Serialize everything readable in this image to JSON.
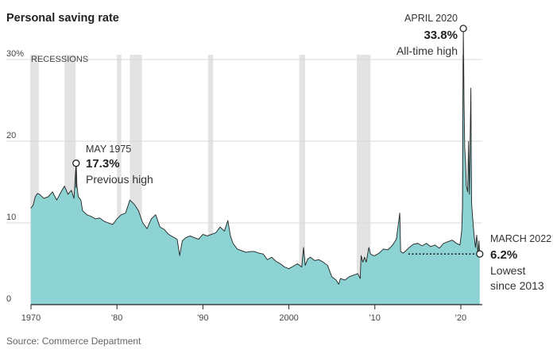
{
  "chart_data": {
    "type": "area",
    "title": "Personal saving rate",
    "source": "Source: Commerce Department",
    "recession_label": "RECESSIONS",
    "ylim": [
      0,
      30
    ],
    "xlim": [
      1970,
      2022.5
    ],
    "y_ticks": [
      {
        "value": 0,
        "label": "0"
      },
      {
        "value": 10,
        "label": "10"
      },
      {
        "value": 20,
        "label": "20"
      },
      {
        "value": 30,
        "label": "30%"
      }
    ],
    "x_ticks": [
      {
        "value": 1970,
        "label": "1970"
      },
      {
        "value": 1980,
        "label": "'80"
      },
      {
        "value": 1990,
        "label": "'90"
      },
      {
        "value": 2000,
        "label": "2000"
      },
      {
        "value": 2010,
        "label": "'10"
      },
      {
        "value": 2020,
        "label": "'20"
      }
    ],
    "recessions": [
      [
        1969.9,
        1970.9
      ],
      [
        1973.9,
        1975.2
      ],
      [
        1980.0,
        1980.5
      ],
      [
        1981.5,
        1982.9
      ],
      [
        1990.6,
        1991.2
      ],
      [
        2001.2,
        2001.9
      ],
      [
        2007.9,
        2009.5
      ],
      [
        2020.1,
        2020.4
      ]
    ],
    "series": [
      {
        "x": [
          1970.0,
          1970.25,
          1970.5,
          1970.75,
          1971.0,
          1971.5,
          1972.0,
          1972.5,
          1973.0,
          1973.5,
          1973.9,
          1974.3,
          1974.7,
          1975.0,
          1975.25,
          1975.35,
          1975.5,
          1975.8,
          1976.0,
          1976.5,
          1977.0,
          1977.5,
          1978.0,
          1978.5,
          1979.0,
          1979.5,
          1980.0,
          1980.5,
          1981.0,
          1981.5,
          1982.0,
          1982.5,
          1983.0,
          1983.5,
          1984.0,
          1984.5,
          1985.0,
          1985.5,
          1986.0,
          1986.5,
          1987.0,
          1987.3,
          1987.6,
          1988.0,
          1988.5,
          1989.0,
          1989.5,
          1990.0,
          1990.5,
          1991.0,
          1991.5,
          1992.0,
          1992.5,
          1992.9,
          1993.2,
          1993.5,
          1994.0,
          1994.5,
          1995.0,
          1995.5,
          1996.0,
          1996.5,
          1997.0,
          1997.5,
          1998.0,
          1998.5,
          1999.0,
          1999.5,
          2000.0,
          2000.5,
          2001.0,
          2001.5,
          2001.7,
          2001.9,
          2002.2,
          2002.5,
          2003.0,
          2003.5,
          2004.0,
          2004.5,
          2005.0,
          2005.5,
          2005.8,
          2006.0,
          2006.5,
          2007.0,
          2007.5,
          2008.0,
          2008.3,
          2008.4,
          2008.6,
          2008.8,
          2009.0,
          2009.3,
          2009.5,
          2009.8,
          2010.0,
          2010.5,
          2011.0,
          2011.5,
          2012.0,
          2012.5,
          2012.9,
          2013.0,
          2013.3,
          2013.6,
          2014.0,
          2014.5,
          2015.0,
          2015.5,
          2016.0,
          2016.5,
          2017.0,
          2017.5,
          2018.0,
          2018.5,
          2019.0,
          2019.5,
          2019.9,
          2020.1,
          2020.2,
          2020.29,
          2020.38,
          2020.46,
          2020.55,
          2020.65,
          2020.8,
          2020.9,
          2021.0,
          2021.08,
          2021.17,
          2021.25,
          2021.35,
          2021.5,
          2021.7,
          2021.85,
          2022.0,
          2022.1,
          2022.2
        ],
        "values": [
          11.8,
          12.2,
          13.2,
          13.6,
          13.5,
          13.0,
          13.2,
          13.8,
          12.8,
          13.8,
          14.5,
          13.5,
          14.0,
          13.0,
          17.3,
          14.5,
          13.2,
          12.8,
          11.5,
          11.0,
          10.8,
          10.5,
          10.6,
          10.2,
          10.0,
          9.8,
          10.5,
          11.0,
          11.2,
          12.8,
          12.3,
          11.5,
          10.0,
          9.3,
          10.5,
          11.0,
          9.5,
          9.2,
          8.6,
          8.3,
          8.0,
          6.0,
          7.8,
          8.2,
          8.4,
          8.2,
          8.0,
          8.6,
          8.4,
          8.6,
          8.8,
          9.5,
          9.0,
          10.3,
          8.4,
          7.5,
          6.8,
          6.6,
          6.4,
          6.5,
          6.5,
          6.3,
          6.2,
          5.5,
          5.8,
          5.3,
          5.0,
          4.6,
          4.4,
          4.7,
          5.0,
          4.6,
          7.0,
          4.8,
          5.6,
          5.8,
          5.4,
          5.5,
          5.2,
          4.8,
          3.4,
          3.0,
          2.5,
          3.2,
          3.0,
          3.4,
          3.6,
          3.8,
          3.2,
          6.0,
          5.2,
          5.8,
          5.2,
          7.0,
          6.2,
          6.0,
          6.0,
          6.3,
          6.8,
          6.7,
          7.2,
          8.0,
          11.2,
          6.5,
          6.3,
          6.6,
          7.0,
          7.4,
          7.5,
          7.2,
          7.5,
          7.1,
          7.3,
          6.9,
          7.5,
          7.7,
          7.9,
          7.5,
          7.3,
          9.0,
          12.0,
          33.8,
          24.5,
          19.0,
          17.5,
          14.5,
          13.8,
          20.0,
          13.5,
          19.8,
          26.5,
          12.5,
          11.0,
          9.0,
          7.0,
          8.5,
          6.0,
          7.8,
          6.2
        ]
      }
    ],
    "annotations": {
      "may1975": {
        "x": 1975.25,
        "y": 17.3,
        "date": "MAY 1975",
        "value": "17.3%",
        "label": "Previous high"
      },
      "apr2020": {
        "x": 2020.29,
        "y": 33.8,
        "date": "APRIL 2020",
        "value": "33.8%",
        "label": "All-time high"
      },
      "mar2022": {
        "x": 2022.2,
        "y": 6.2,
        "date": "MARCH 2022",
        "value": "6.2%",
        "label1": "Lowest",
        "label2": "since 2013",
        "line_from_x": 2013.9
      }
    },
    "colors": {
      "area_fill": "#8dd3d3",
      "line": "#222222",
      "recession": "#e3e3e3",
      "grid": "#d9d9d9"
    }
  }
}
